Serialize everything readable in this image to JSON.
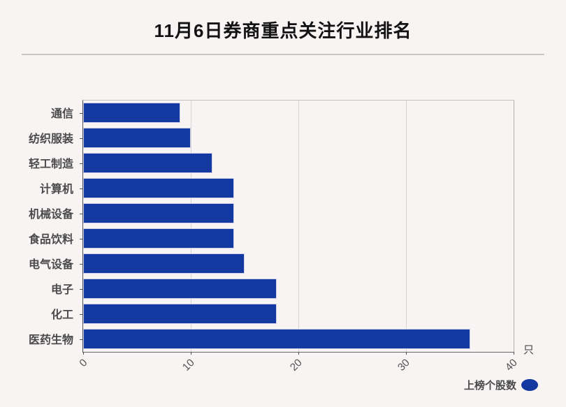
{
  "title": "11月6日券商重点关注行业排名",
  "chart_data": {
    "type": "bar",
    "orientation": "horizontal",
    "title": "11月6日券商重点关注行业排名",
    "categories": [
      "通信",
      "纺织服装",
      "轻工制造",
      "计算机",
      "机械设备",
      "食品饮料",
      "电气设备",
      "电子",
      "化工",
      "医药生物"
    ],
    "series": [
      {
        "name": "上榜个股数",
        "values": [
          9,
          10,
          12,
          14,
          14,
          14,
          15,
          18,
          18,
          36
        ]
      }
    ],
    "xlim": [
      0,
      40
    ],
    "x_ticks": [
      0,
      10,
      20,
      30,
      40
    ],
    "x_unit": "只",
    "grid": true,
    "legend_position": "bottom-right",
    "bar_color": "#13389f",
    "background_color": "#f7f4f3"
  },
  "legend": {
    "label": "上榜个股数"
  },
  "axis": {
    "unit": "只"
  }
}
